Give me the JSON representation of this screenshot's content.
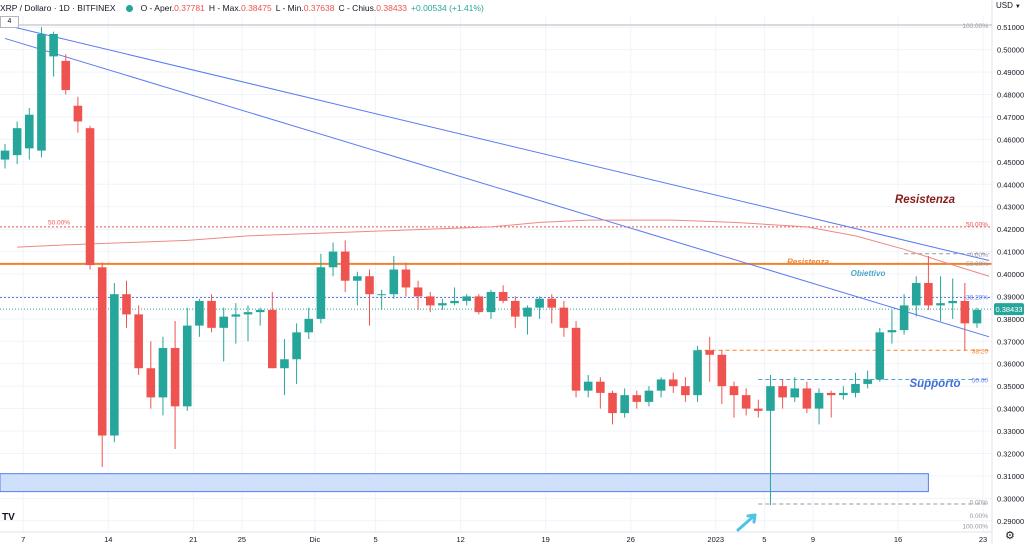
{
  "header": {
    "symbol": "XRP / Dollaro · 1D · BITFINEX",
    "open_label": "O - Aper.",
    "open": "0.37781",
    "high_label": "H - Max.",
    "high": "0.38475",
    "low_label": "L - Min.",
    "low": "0.37638",
    "close_label": "C - Chius.",
    "close": "0.38433",
    "change": "+0.00534 (+1.41%)"
  },
  "badge": "4",
  "currency": "USD",
  "colors": {
    "up": "#26a69a",
    "down": "#ef5350",
    "trendline": "#5b7bf0",
    "resistance_line": "#f0822f",
    "support_zone": "#cfe0fb",
    "fib_text": "#ef5350",
    "ma": "#ec8a83",
    "resistenza_label": "#8b1c1c",
    "supporto_label": "#3f6fd8",
    "obiettivo_label": "#4aa7c9"
  },
  "chart_data": {
    "type": "candlestick",
    "title": "XRP / Dollaro · 1D · BITFINEX",
    "y_axis": {
      "min": 0.285,
      "max": 0.515,
      "ticks": [
        "0.51000",
        "0.50000",
        "0.49000",
        "0.48000",
        "0.47000",
        "0.46000",
        "0.45000",
        "0.44000",
        "0.43000",
        "0.42000",
        "0.41000",
        "0.40000",
        "0.39000",
        "0.38000",
        "0.37000",
        "0.36000",
        "0.35000",
        "0.34000",
        "0.33000",
        "0.32000",
        "0.31000",
        "0.30000",
        "0.29000"
      ]
    },
    "x_axis": {
      "tick_labels": [
        "7",
        "14",
        "21",
        "25",
        "Dic",
        "5",
        "12",
        "19",
        "26",
        "2023",
        "5",
        "9",
        "16",
        "23"
      ],
      "tick_index": [
        1.5,
        8.5,
        15.5,
        19.5,
        25.5,
        30.5,
        37.5,
        44.5,
        51.5,
        58.5,
        62.5,
        66.5,
        73.5,
        80.5
      ]
    },
    "last_price": "0.38433",
    "candles": [
      {
        "o": 0.451,
        "h": 0.458,
        "l": 0.447,
        "c": 0.455
      },
      {
        "o": 0.453,
        "h": 0.468,
        "l": 0.449,
        "c": 0.465
      },
      {
        "o": 0.456,
        "h": 0.474,
        "l": 0.451,
        "c": 0.471
      },
      {
        "o": 0.455,
        "h": 0.51,
        "l": 0.452,
        "c": 0.507
      },
      {
        "o": 0.497,
        "h": 0.508,
        "l": 0.488,
        "c": 0.507
      },
      {
        "o": 0.495,
        "h": 0.498,
        "l": 0.48,
        "c": 0.482
      },
      {
        "o": 0.475,
        "h": 0.479,
        "l": 0.463,
        "c": 0.468
      },
      {
        "o": 0.465,
        "h": 0.466,
        "l": 0.402,
        "c": 0.404
      },
      {
        "o": 0.403,
        "h": 0.405,
        "l": 0.314,
        "c": 0.328
      },
      {
        "o": 0.328,
        "h": 0.396,
        "l": 0.325,
        "c": 0.391
      },
      {
        "o": 0.391,
        "h": 0.397,
        "l": 0.376,
        "c": 0.382
      },
      {
        "o": 0.382,
        "h": 0.386,
        "l": 0.355,
        "c": 0.358
      },
      {
        "o": 0.358,
        "h": 0.37,
        "l": 0.34,
        "c": 0.345
      },
      {
        "o": 0.345,
        "h": 0.372,
        "l": 0.337,
        "c": 0.367
      },
      {
        "o": 0.367,
        "h": 0.379,
        "l": 0.322,
        "c": 0.341
      },
      {
        "o": 0.341,
        "h": 0.385,
        "l": 0.339,
        "c": 0.377
      },
      {
        "o": 0.377,
        "h": 0.389,
        "l": 0.372,
        "c": 0.388
      },
      {
        "o": 0.388,
        "h": 0.391,
        "l": 0.374,
        "c": 0.376
      },
      {
        "o": 0.376,
        "h": 0.385,
        "l": 0.361,
        "c": 0.381
      },
      {
        "o": 0.381,
        "h": 0.387,
        "l": 0.369,
        "c": 0.382
      },
      {
        "o": 0.382,
        "h": 0.386,
        "l": 0.37,
        "c": 0.383
      },
      {
        "o": 0.383,
        "h": 0.385,
        "l": 0.377,
        "c": 0.384
      },
      {
        "o": 0.384,
        "h": 0.392,
        "l": 0.358,
        "c": 0.358
      },
      {
        "o": 0.358,
        "h": 0.371,
        "l": 0.346,
        "c": 0.362
      },
      {
        "o": 0.362,
        "h": 0.378,
        "l": 0.351,
        "c": 0.374
      },
      {
        "o": 0.374,
        "h": 0.385,
        "l": 0.371,
        "c": 0.38
      },
      {
        "o": 0.38,
        "h": 0.409,
        "l": 0.378,
        "c": 0.403
      },
      {
        "o": 0.403,
        "h": 0.414,
        "l": 0.399,
        "c": 0.41
      },
      {
        "o": 0.41,
        "h": 0.415,
        "l": 0.392,
        "c": 0.397
      },
      {
        "o": 0.397,
        "h": 0.401,
        "l": 0.386,
        "c": 0.399
      },
      {
        "o": 0.399,
        "h": 0.402,
        "l": 0.377,
        "c": 0.391
      },
      {
        "o": 0.391,
        "h": 0.393,
        "l": 0.384,
        "c": 0.391
      },
      {
        "o": 0.391,
        "h": 0.408,
        "l": 0.389,
        "c": 0.402
      },
      {
        "o": 0.402,
        "h": 0.405,
        "l": 0.39,
        "c": 0.394
      },
      {
        "o": 0.394,
        "h": 0.397,
        "l": 0.384,
        "c": 0.39
      },
      {
        "o": 0.39,
        "h": 0.392,
        "l": 0.383,
        "c": 0.386
      },
      {
        "o": 0.386,
        "h": 0.389,
        "l": 0.384,
        "c": 0.387
      },
      {
        "o": 0.387,
        "h": 0.394,
        "l": 0.386,
        "c": 0.388
      },
      {
        "o": 0.388,
        "h": 0.391,
        "l": 0.386,
        "c": 0.39
      },
      {
        "o": 0.39,
        "h": 0.391,
        "l": 0.382,
        "c": 0.383
      },
      {
        "o": 0.383,
        "h": 0.393,
        "l": 0.38,
        "c": 0.392
      },
      {
        "o": 0.392,
        "h": 0.395,
        "l": 0.387,
        "c": 0.388
      },
      {
        "o": 0.388,
        "h": 0.39,
        "l": 0.376,
        "c": 0.381
      },
      {
        "o": 0.381,
        "h": 0.386,
        "l": 0.373,
        "c": 0.385
      },
      {
        "o": 0.385,
        "h": 0.39,
        "l": 0.38,
        "c": 0.389
      },
      {
        "o": 0.389,
        "h": 0.391,
        "l": 0.378,
        "c": 0.385
      },
      {
        "o": 0.385,
        "h": 0.388,
        "l": 0.372,
        "c": 0.376
      },
      {
        "o": 0.376,
        "h": 0.379,
        "l": 0.345,
        "c": 0.348
      },
      {
        "o": 0.348,
        "h": 0.355,
        "l": 0.345,
        "c": 0.352
      },
      {
        "o": 0.352,
        "h": 0.354,
        "l": 0.34,
        "c": 0.347
      },
      {
        "o": 0.347,
        "h": 0.348,
        "l": 0.333,
        "c": 0.338
      },
      {
        "o": 0.338,
        "h": 0.349,
        "l": 0.336,
        "c": 0.346
      },
      {
        "o": 0.346,
        "h": 0.348,
        "l": 0.34,
        "c": 0.343
      },
      {
        "o": 0.343,
        "h": 0.35,
        "l": 0.341,
        "c": 0.348
      },
      {
        "o": 0.348,
        "h": 0.354,
        "l": 0.345,
        "c": 0.353
      },
      {
        "o": 0.353,
        "h": 0.356,
        "l": 0.347,
        "c": 0.35
      },
      {
        "o": 0.35,
        "h": 0.354,
        "l": 0.343,
        "c": 0.346
      },
      {
        "o": 0.346,
        "h": 0.368,
        "l": 0.343,
        "c": 0.366
      },
      {
        "o": 0.366,
        "h": 0.372,
        "l": 0.352,
        "c": 0.364
      },
      {
        "o": 0.364,
        "h": 0.366,
        "l": 0.342,
        "c": 0.35
      },
      {
        "o": 0.35,
        "h": 0.352,
        "l": 0.336,
        "c": 0.346
      },
      {
        "o": 0.346,
        "h": 0.349,
        "l": 0.337,
        "c": 0.34
      },
      {
        "o": 0.34,
        "h": 0.344,
        "l": 0.336,
        "c": 0.339
      },
      {
        "o": 0.339,
        "h": 0.355,
        "l": 0.297,
        "c": 0.35
      },
      {
        "o": 0.35,
        "h": 0.353,
        "l": 0.34,
        "c": 0.345
      },
      {
        "o": 0.345,
        "h": 0.354,
        "l": 0.343,
        "c": 0.349
      },
      {
        "o": 0.349,
        "h": 0.352,
        "l": 0.338,
        "c": 0.34
      },
      {
        "o": 0.34,
        "h": 0.349,
        "l": 0.333,
        "c": 0.347
      },
      {
        "o": 0.347,
        "h": 0.348,
        "l": 0.336,
        "c": 0.346
      },
      {
        "o": 0.346,
        "h": 0.35,
        "l": 0.344,
        "c": 0.347
      },
      {
        "o": 0.347,
        "h": 0.356,
        "l": 0.345,
        "c": 0.351
      },
      {
        "o": 0.351,
        "h": 0.357,
        "l": 0.349,
        "c": 0.353
      },
      {
        "o": 0.353,
        "h": 0.376,
        "l": 0.352,
        "c": 0.374
      },
      {
        "o": 0.374,
        "h": 0.384,
        "l": 0.369,
        "c": 0.375
      },
      {
        "o": 0.375,
        "h": 0.391,
        "l": 0.373,
        "c": 0.386
      },
      {
        "o": 0.386,
        "h": 0.399,
        "l": 0.381,
        "c": 0.396
      },
      {
        "o": 0.396,
        "h": 0.408,
        "l": 0.384,
        "c": 0.386
      },
      {
        "o": 0.386,
        "h": 0.399,
        "l": 0.379,
        "c": 0.387
      },
      {
        "o": 0.387,
        "h": 0.398,
        "l": 0.38,
        "c": 0.388
      },
      {
        "o": 0.388,
        "h": 0.396,
        "l": 0.366,
        "c": 0.378
      },
      {
        "o": 0.378,
        "h": 0.385,
        "l": 0.376,
        "c": 0.384
      }
    ],
    "moving_average": [
      {
        "x": 1,
        "y": 0.412
      },
      {
        "x": 5,
        "y": 0.413
      },
      {
        "x": 10,
        "y": 0.414
      },
      {
        "x": 15,
        "y": 0.415
      },
      {
        "x": 20,
        "y": 0.417
      },
      {
        "x": 25,
        "y": 0.418
      },
      {
        "x": 30,
        "y": 0.419
      },
      {
        "x": 35,
        "y": 0.42
      },
      {
        "x": 40,
        "y": 0.421
      },
      {
        "x": 44,
        "y": 0.423
      },
      {
        "x": 48,
        "y": 0.424
      },
      {
        "x": 55,
        "y": 0.424
      },
      {
        "x": 60,
        "y": 0.423
      },
      {
        "x": 66,
        "y": 0.421
      },
      {
        "x": 70,
        "y": 0.417
      },
      {
        "x": 74,
        "y": 0.411
      },
      {
        "x": 78,
        "y": 0.404
      },
      {
        "x": 81,
        "y": 0.399
      }
    ],
    "trendlines": [
      {
        "x1": 0,
        "y1": 0.511,
        "x2": 81,
        "y2": 0.406
      },
      {
        "x1": 0,
        "y1": 0.505,
        "x2": 81,
        "y2": 0.372
      }
    ],
    "horizontal_lines": [
      {
        "y": 0.4045,
        "style": "solid",
        "color": "resistance_line"
      },
      {
        "y": 0.421,
        "style": "dotted",
        "color": "down"
      },
      {
        "y": 0.3895,
        "style": "dotted",
        "color": "trendline"
      },
      {
        "y": 0.409,
        "style": "dashed",
        "x1": 74,
        "x2": 81,
        "color": "grid"
      },
      {
        "y": 0.366,
        "style": "dashed",
        "x1": 57,
        "x2": 81,
        "color": "resistance_line"
      },
      {
        "y": 0.353,
        "style": "dashed",
        "x1": 62,
        "x2": 81,
        "color": "obiettivo_label"
      },
      {
        "y": 0.2975,
        "style": "dashed",
        "x1": 62,
        "x2": 81,
        "color": "grid"
      }
    ],
    "support_zone": {
      "y_top": 0.311,
      "y_bottom": 0.303,
      "x_end": 76
    },
    "fib_labels": [
      {
        "text": "0.00%",
        "y": 0.409
      },
      {
        "text": "50.00%",
        "y": 0.405
      },
      {
        "text": "38.20%",
        "y": 0.39
      },
      {
        "text": "38.20",
        "y": 0.366
      },
      {
        "text": "50.00",
        "y": 0.353
      },
      {
        "text": "0.00%",
        "y": 0.2985
      },
      {
        "text": "100.00%",
        "y": 0.511
      },
      {
        "text": "100.00%",
        "y": 0.288
      }
    ],
    "fib_left_label": {
      "text": "50.00%",
      "y": 0.4235
    },
    "fib_right_label": {
      "text": "50.00%",
      "y": 0.4225
    },
    "fib_low_label": {
      "text": "0.00%",
      "y": 0.2925
    },
    "annotations": [
      {
        "text": "Resistenza",
        "style": "large",
        "y": 0.433,
        "color": "resistenza_label"
      },
      {
        "text": "Resistenza",
        "style": "small",
        "y": 0.4055,
        "color": "resistance_line"
      },
      {
        "text": "Obiettivo",
        "style": "small",
        "y": 0.4005,
        "color": "obiettivo_label"
      },
      {
        "text": "Supporto",
        "style": "large",
        "y": 0.351,
        "color": "supporto_label"
      }
    ]
  }
}
